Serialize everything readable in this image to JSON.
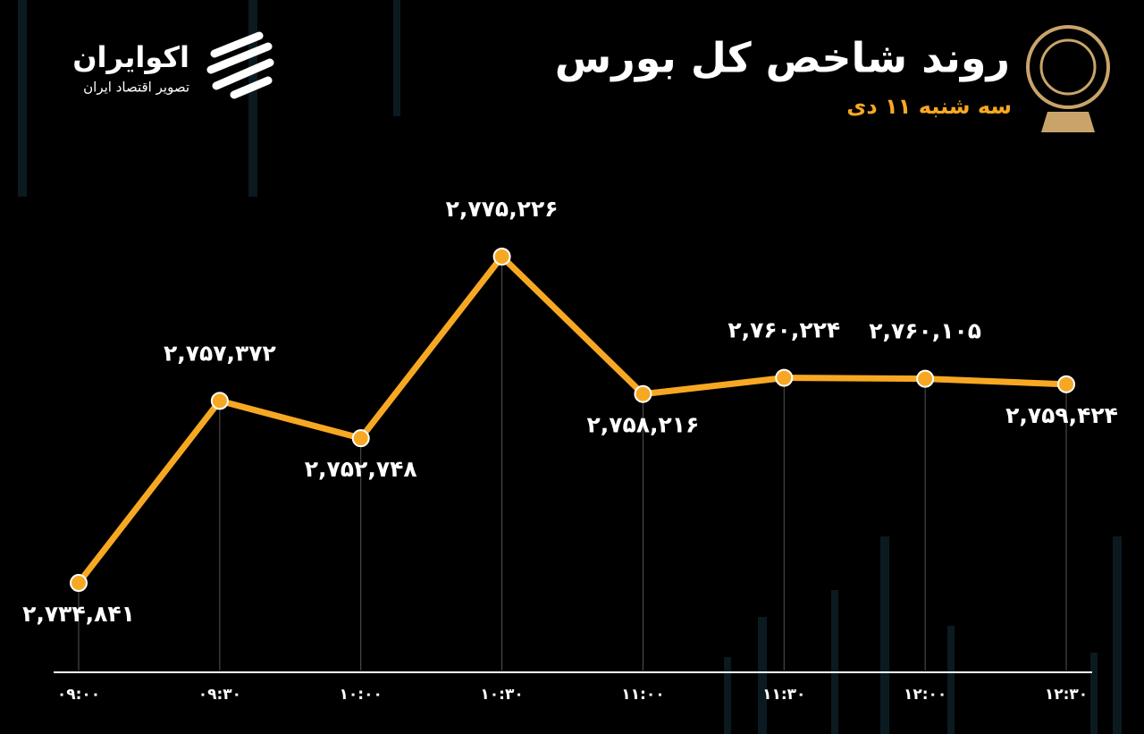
{
  "logo": {
    "name": "اکوایران",
    "tagline": "تصویر اقتصاد ایران"
  },
  "chart_data": {
    "type": "line",
    "title": "روند شاخص کل بورس",
    "subtitle": "سه شنبه ۱۱ دی",
    "categories": [
      "۰۹:۰۰",
      "۰۹:۳۰",
      "۱۰:۰۰",
      "۱۰:۳۰",
      "۱۱:۰۰",
      "۱۱:۳۰",
      "۱۲:۰۰",
      "۱۲:۳۰"
    ],
    "values": [
      2734841,
      2757372,
      2752748,
      2775226,
      2758216,
      2760224,
      2760105,
      2759424
    ],
    "value_labels": [
      "۲,۷۳۴,۸۴۱",
      "۲,۷۵۷,۳۷۲",
      "۲,۷۵۲,۷۴۸",
      "۲,۷۷۵,۲۲۶",
      "۲,۷۵۸,۲۱۶",
      "۲,۷۶۰,۲۲۴",
      "۲,۷۶۰,۱۰۵",
      "۲,۷۵۹,۴۲۴"
    ],
    "color": "#f7a823",
    "ylim": [
      2724000,
      2776000
    ]
  }
}
